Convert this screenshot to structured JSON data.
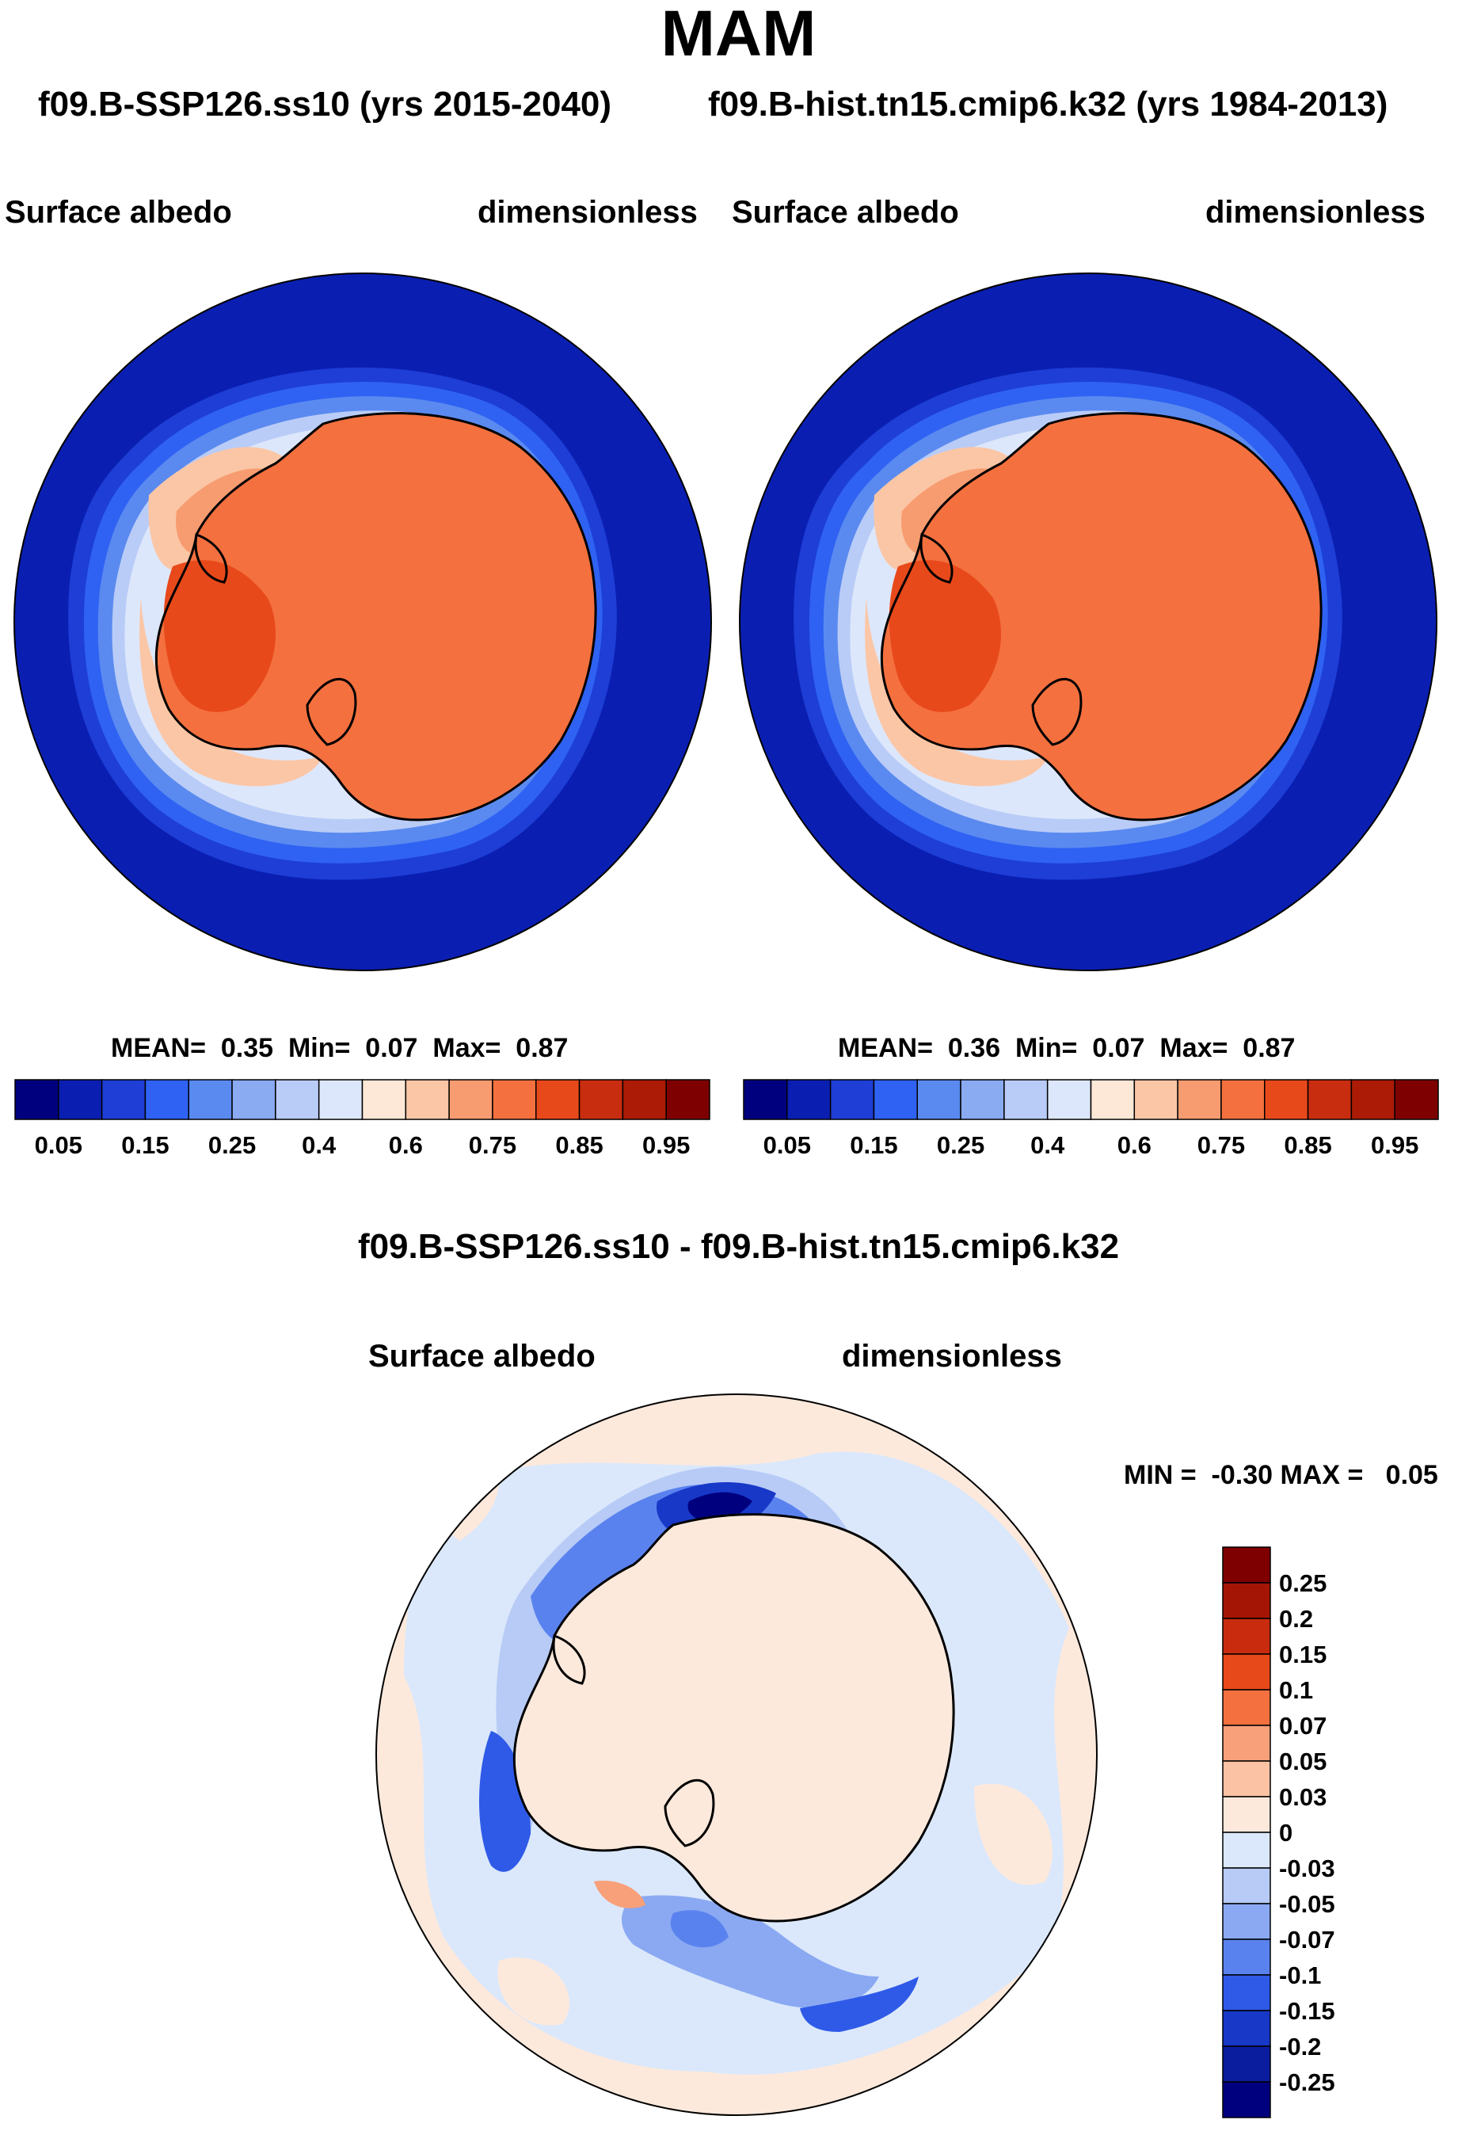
{
  "season_title": "MAM",
  "panel_left": {
    "run_label": "f09.B-SSP126.ss10 (yrs 2015-2040)",
    "variable": "Surface albedo",
    "units": "dimensionless",
    "stats": {
      "mean_label": "MEAN=",
      "mean": "0.35",
      "min_label": "Min=",
      "min": "0.07",
      "max_label": "Max=",
      "max": "0.87"
    }
  },
  "panel_right": {
    "run_label": "f09.B-hist.tn15.cmip6.k32 (yrs 1984-2013)",
    "variable": "Surface albedo",
    "units": "dimensionless",
    "stats": {
      "mean_label": "MEAN=",
      "mean": "0.36",
      "min_label": "Min=",
      "min": "0.07",
      "max_label": "Max=",
      "max": "0.87"
    }
  },
  "panel_diff": {
    "title": "f09.B-SSP126.ss10 - f09.B-hist.tn15.cmip6.k32",
    "variable": "Surface albedo",
    "units": "dimensionless",
    "minmax": "MIN =  -0.30 MAX =   0.05"
  },
  "chart_data": [
    {
      "type": "heatmap",
      "projection": "south polar stereographic",
      "title": "Surface albedo",
      "units": "dimensionless",
      "colorbar": {
        "orientation": "horizontal",
        "tick_labels": [
          "0.05",
          "0.15",
          "0.25",
          "0.4",
          "0.6",
          "0.75",
          "0.85",
          "0.95"
        ],
        "colors": [
          "#00007f",
          "#0a1fb2",
          "#1e3ed6",
          "#2f62f2",
          "#5a8af0",
          "#8aaaf2",
          "#b9ccf7",
          "#dde7fb",
          "#fde8d8",
          "#fbc6a6",
          "#f79c70",
          "#f4703f",
          "#e8491b",
          "#c92d10",
          "#ab1b05",
          "#7f0000"
        ]
      },
      "stats": {
        "mean": 0.35,
        "min": 0.07,
        "max": 0.87
      }
    },
    {
      "type": "heatmap",
      "projection": "south polar stereographic",
      "title": "Surface albedo",
      "units": "dimensionless",
      "colorbar": {
        "orientation": "horizontal",
        "tick_labels": [
          "0.05",
          "0.15",
          "0.25",
          "0.4",
          "0.6",
          "0.75",
          "0.85",
          "0.95"
        ],
        "colors": [
          "#00007f",
          "#0a1fb2",
          "#1e3ed6",
          "#2f62f2",
          "#5a8af0",
          "#8aaaf2",
          "#b9ccf7",
          "#dde7fb",
          "#fde8d8",
          "#fbc6a6",
          "#f79c70",
          "#f4703f",
          "#e8491b",
          "#c92d10",
          "#ab1b05",
          "#7f0000"
        ]
      },
      "stats": {
        "mean": 0.36,
        "min": 0.07,
        "max": 0.87
      }
    },
    {
      "type": "heatmap",
      "projection": "south polar stereographic",
      "title": "f09.B-SSP126.ss10 - f09.B-hist.tn15.cmip6.k32",
      "units": "dimensionless",
      "colorbar": {
        "orientation": "vertical",
        "tick_labels": [
          "0.25",
          "0.2",
          "0.15",
          "0.1",
          "0.07",
          "0.05",
          "0.03",
          "0",
          "-0.03",
          "-0.05",
          "-0.07",
          "-0.1",
          "-0.15",
          "-0.2",
          "-0.25"
        ],
        "colors": [
          "#7f0000",
          "#a51505",
          "#c82b0e",
          "#e8491b",
          "#f4703f",
          "#f8a07a",
          "#fbc3a3",
          "#fde9dc",
          "#dbe8fb",
          "#b7cbf6",
          "#8aa9f2",
          "#5a82ef",
          "#2f5ae8",
          "#1838c8",
          "#0a1d9e",
          "#00007f"
        ]
      },
      "stats": {
        "min": -0.3,
        "max": 0.05
      }
    }
  ]
}
